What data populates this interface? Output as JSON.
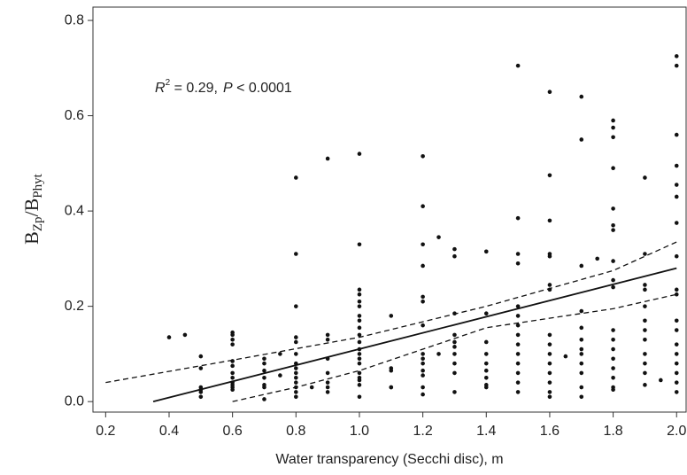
{
  "chart_data": {
    "type": "scatter",
    "annotation": {
      "r_label": "R",
      "r_exp": "2",
      "r_value": " = 0.29,",
      "p_label": "P",
      "p_value": " < 0.0001"
    },
    "y_label": {
      "base": "B",
      "sub1": "Zp",
      "mid": "/B",
      "sub2": "Phyt"
    },
    "x_label": "Water transparency (Secchi disc), m",
    "xlim": [
      0.16,
      2.03
    ],
    "ylim": [
      -0.022,
      0.828
    ],
    "xticks": [
      0.2,
      0.4,
      0.6,
      0.8,
      {
        "value": 1,
        "label": "1.0"
      },
      1.2,
      1.4,
      1.6,
      1.8,
      {
        "value": 2,
        "label": "2.0"
      }
    ],
    "yticks": [
      {
        "value": 0,
        "label": "0.0"
      },
      0.2,
      0.4,
      0.6,
      0.8
    ],
    "color": "#111111",
    "series": [
      {
        "x": [
          0.4,
          0.45,
          0.5,
          0.5,
          0.5,
          0.5,
          0.5,
          0.5,
          0.6,
          0.6,
          0.6,
          0.6,
          0.6,
          0.6,
          0.6,
          0.6,
          0.6,
          0.6,
          0.6,
          0.6,
          0.7,
          0.7,
          0.7,
          0.7,
          0.7,
          0.7,
          0.7,
          0.75,
          0.75,
          0.8,
          0.8,
          0.8,
          0.8,
          0.8,
          0.8,
          0.8,
          0.8,
          0.8,
          0.8,
          0.8,
          0.8,
          0.8,
          0.8,
          0.85,
          0.9,
          0.9,
          0.9,
          0.9,
          0.9,
          0.9,
          0.9,
          0.9,
          1.0,
          1.0,
          1.0,
          1.0,
          1.0,
          1.0,
          1.0,
          1.0,
          1.0,
          1.0,
          1.0,
          1.0,
          1.0,
          1.0,
          1.0,
          1.0,
          1.0,
          1.0,
          1.0,
          1.0,
          1.1,
          1.1,
          1.1,
          1.1,
          1.1,
          1.2,
          1.2,
          1.2,
          1.2,
          1.2,
          1.2,
          1.2,
          1.2,
          1.2,
          1.2,
          1.2,
          1.2,
          1.2,
          1.2,
          1.25,
          1.25,
          1.3,
          1.3,
          1.3,
          1.3,
          1.3,
          1.3,
          1.3,
          1.3,
          1.3,
          1.3,
          1.4,
          1.4,
          1.4,
          1.4,
          1.4,
          1.4,
          1.4,
          1.4,
          1.4,
          1.5,
          1.5,
          1.5,
          1.5,
          1.5,
          1.5,
          1.5,
          1.5,
          1.5,
          1.5,
          1.5,
          1.5,
          1.5,
          1.5,
          1.6,
          1.6,
          1.6,
          1.6,
          1.6,
          1.6,
          1.6,
          1.6,
          1.6,
          1.6,
          1.6,
          1.6,
          1.6,
          1.6,
          1.6,
          1.65,
          1.7,
          1.7,
          1.7,
          1.7,
          1.7,
          1.7,
          1.7,
          1.7,
          1.7,
          1.7,
          1.7,
          1.7,
          1.75,
          1.8,
          1.8,
          1.8,
          1.8,
          1.8,
          1.8,
          1.8,
          1.8,
          1.8,
          1.8,
          1.8,
          1.8,
          1.8,
          1.8,
          1.8,
          1.8,
          1.8,
          1.8,
          1.9,
          1.9,
          1.9,
          1.9,
          1.9,
          1.9,
          1.9,
          1.9,
          1.9,
          1.9,
          1.9,
          1.9,
          1.95,
          2.0,
          2.0,
          2.0,
          2.0,
          2.0,
          2.0,
          2.0,
          2.0,
          2.0,
          2.0,
          2.0,
          2.0,
          2.0,
          2.0,
          2.0,
          2.0,
          2.0,
          2.0
        ],
        "values": [
          0.135,
          0.14,
          0.095,
          0.07,
          0.03,
          0.025,
          0.02,
          0.01,
          0.145,
          0.14,
          0.13,
          0.12,
          0.085,
          0.075,
          0.06,
          0.05,
          0.04,
          0.035,
          0.03,
          0.025,
          0.09,
          0.08,
          0.065,
          0.05,
          0.035,
          0.03,
          0.005,
          0.1,
          0.055,
          0.47,
          0.31,
          0.2,
          0.135,
          0.125,
          0.1,
          0.08,
          0.07,
          0.06,
          0.05,
          0.04,
          0.03,
          0.02,
          0.01,
          0.03,
          0.51,
          0.14,
          0.13,
          0.09,
          0.06,
          0.04,
          0.03,
          0.02,
          0.52,
          0.33,
          0.235,
          0.225,
          0.21,
          0.2,
          0.18,
          0.17,
          0.155,
          0.14,
          0.125,
          0.11,
          0.1,
          0.09,
          0.08,
          0.06,
          0.05,
          0.045,
          0.035,
          0.01,
          0.18,
          0.07,
          0.065,
          0.03,
          0.03,
          0.515,
          0.41,
          0.33,
          0.285,
          0.22,
          0.21,
          0.16,
          0.1,
          0.09,
          0.08,
          0.065,
          0.055,
          0.03,
          0.015,
          0.345,
          0.1,
          0.32,
          0.305,
          0.185,
          0.14,
          0.125,
          0.115,
          0.1,
          0.08,
          0.06,
          0.02,
          0.315,
          0.185,
          0.125,
          0.1,
          0.08,
          0.065,
          0.05,
          0.035,
          0.03,
          0.705,
          0.385,
          0.31,
          0.29,
          0.2,
          0.18,
          0.16,
          0.14,
          0.12,
          0.1,
          0.08,
          0.06,
          0.04,
          0.02,
          0.65,
          0.475,
          0.38,
          0.31,
          0.305,
          0.245,
          0.235,
          0.14,
          0.12,
          0.1,
          0.08,
          0.06,
          0.04,
          0.02,
          0.01,
          0.095,
          0.64,
          0.55,
          0.285,
          0.19,
          0.155,
          0.13,
          0.11,
          0.1,
          0.08,
          0.06,
          0.03,
          0.01,
          0.3,
          0.59,
          0.575,
          0.555,
          0.49,
          0.405,
          0.37,
          0.36,
          0.295,
          0.255,
          0.24,
          0.15,
          0.13,
          0.11,
          0.09,
          0.07,
          0.05,
          0.03,
          0.025,
          0.47,
          0.31,
          0.245,
          0.235,
          0.2,
          0.17,
          0.15,
          0.13,
          0.1,
          0.08,
          0.06,
          0.035,
          0.045,
          0.725,
          0.705,
          0.56,
          0.495,
          0.455,
          0.43,
          0.375,
          0.305,
          0.235,
          0.225,
          0.17,
          0.15,
          0.12,
          0.1,
          0.08,
          0.06,
          0.04,
          0.02
        ]
      }
    ],
    "fit": {
      "x": [
        0.35,
        2.0
      ],
      "values": [
        0,
        0.28
      ]
    },
    "upper": {
      "x": [
        0.2,
        0.6,
        1.0,
        1.4,
        1.8,
        2.0
      ],
      "values": [
        0.04,
        0.087,
        0.135,
        0.2,
        0.275,
        0.335
      ]
    },
    "lower": {
      "x": [
        0.6,
        0.8,
        1.0,
        1.4,
        1.8,
        2.0
      ],
      "values": [
        0.0,
        0.03,
        0.065,
        0.155,
        0.195,
        0.225
      ]
    }
  }
}
